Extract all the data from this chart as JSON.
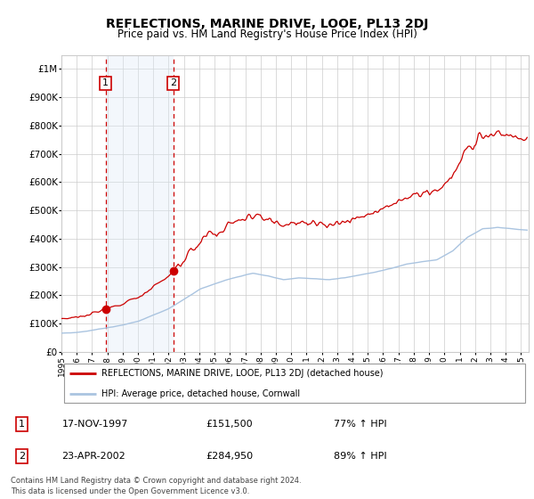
{
  "title": "REFLECTIONS, MARINE DRIVE, LOOE, PL13 2DJ",
  "subtitle": "Price paid vs. HM Land Registry's House Price Index (HPI)",
  "legend_line1": "REFLECTIONS, MARINE DRIVE, LOOE, PL13 2DJ (detached house)",
  "legend_line2": "HPI: Average price, detached house, Cornwall",
  "transaction1_date": "17-NOV-1997",
  "transaction1_price": "£151,500",
  "transaction1_pct": "77% ↑ HPI",
  "transaction1_year": 1997.88,
  "transaction1_value": 151500,
  "transaction2_date": "23-APR-2002",
  "transaction2_price": "£284,950",
  "transaction2_pct": "89% ↑ HPI",
  "transaction2_year": 2002.31,
  "transaction2_value": 284950,
  "footer": "Contains HM Land Registry data © Crown copyright and database right 2024.\nThis data is licensed under the Open Government Licence v3.0.",
  "ylim": [
    0,
    1050000
  ],
  "xlim_start": 1995.0,
  "xlim_end": 2025.5,
  "hpi_color": "#aac4e0",
  "price_color": "#cc0000",
  "shade_color": "#ddeaf7",
  "marker_color": "#cc0000",
  "grid_color": "#cccccc",
  "background_color": "#ffffff",
  "box_color": "#cc0000"
}
